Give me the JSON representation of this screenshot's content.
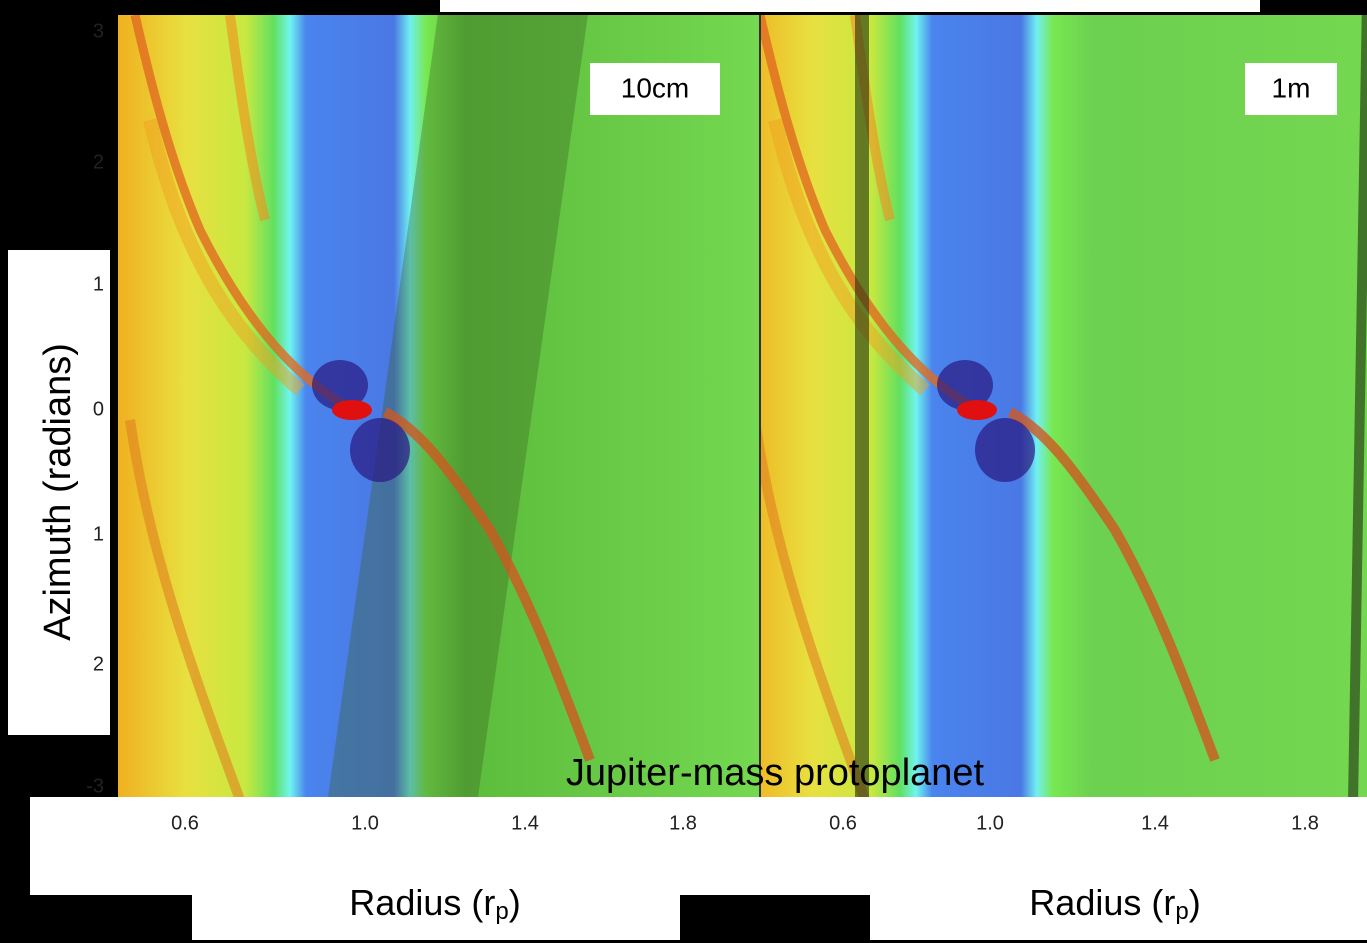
{
  "title": "Jupiter-mass protoplanet",
  "y_axis": {
    "label": "Azimuth (radians)",
    "ticks": [
      "3",
      "2",
      "1",
      "0",
      "1",
      "2",
      "-3"
    ]
  },
  "panels": [
    {
      "label": "10cm",
      "x_axis": {
        "label": {
          "text": "Radius (r",
          "sub": "p",
          "close": ")"
        },
        "ticks": [
          "0.6",
          "1.0",
          "1.4",
          "1.8"
        ]
      }
    },
    {
      "label": "1m",
      "x_axis": {
        "label": {
          "text": "Radius (r",
          "sub": "p",
          "close": ")"
        },
        "ticks": [
          "0.6",
          "1.0",
          "1.4",
          "1.8"
        ]
      }
    }
  ]
}
